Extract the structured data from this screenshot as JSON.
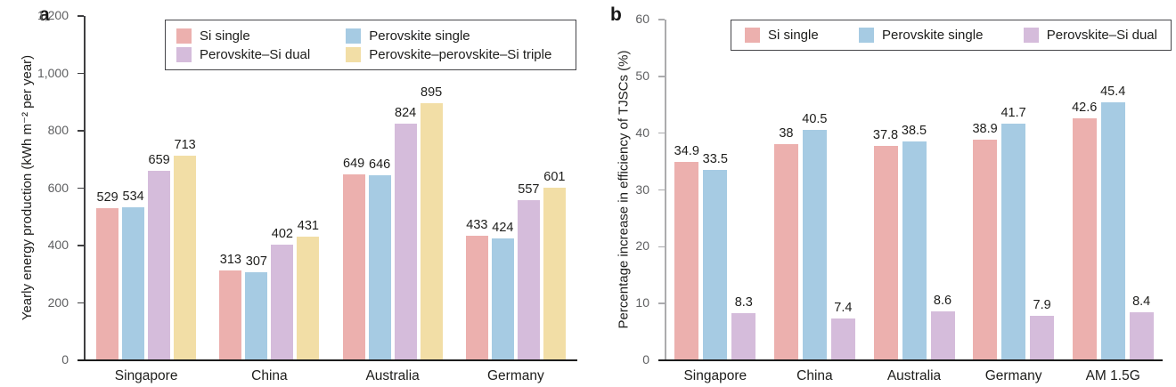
{
  "figure_title": "",
  "colors": {
    "si_single": "#ECB0AE",
    "perovskite_single": "#A6CBE3",
    "perovskite_si_dual": "#D5BCDB",
    "perovskite_perovskite_si_triple": "#F2DEA6",
    "baseline": "#1c1c1c",
    "panel_a_axis": "#3f3f41",
    "panel_b_axis": "#ababad",
    "tick_label_text": "#5e5f61",
    "background": "#ffffff"
  },
  "chart_data": [
    {
      "type": "bar",
      "panel_label": "a",
      "categories": [
        "Singapore",
        "China",
        "Australia",
        "Germany"
      ],
      "series": [
        {
          "name": "Si single",
          "color": "#ECB0AE",
          "values": [
            529,
            313,
            649,
            433
          ]
        },
        {
          "name": "Perovskite single",
          "color": "#A6CBE3",
          "values": [
            534,
            307,
            646,
            424
          ]
        },
        {
          "name": "Perovskite–Si dual",
          "color": "#D5BCDB",
          "values": [
            659,
            402,
            824,
            557
          ]
        },
        {
          "name": "Perovskite–perovskite–Si triple",
          "color": "#F2DEA6",
          "values": [
            713,
            431,
            895,
            601
          ]
        }
      ],
      "xlabel": "",
      "ylabel": "Yearly energy production (kWh m⁻² per year)",
      "ylim": [
        0,
        1200
      ],
      "ytick_values": [
        0,
        200,
        400,
        600,
        800,
        1000,
        1200
      ],
      "ytick_labels": [
        "0",
        "200",
        "400",
        "600",
        "800",
        "1,000",
        "1,200"
      ],
      "grid": false,
      "bar_labels": true,
      "legend_position": "top",
      "legend_columns": 2,
      "axis_color": "#3f3f41"
    },
    {
      "type": "bar",
      "panel_label": "b",
      "categories": [
        "Singapore",
        "China",
        "Australia",
        "Germany",
        "AM 1.5G"
      ],
      "series": [
        {
          "name": "Si single",
          "color": "#ECB0AE",
          "values": [
            34.9,
            38,
            37.8,
            38.9,
            42.6
          ]
        },
        {
          "name": "Perovskite single",
          "color": "#A6CBE3",
          "values": [
            33.5,
            40.5,
            38.5,
            41.7,
            45.4
          ]
        },
        {
          "name": "Perovskite–Si dual",
          "color": "#D5BCDB",
          "values": [
            8.3,
            7.4,
            8.6,
            7.9,
            8.4
          ]
        }
      ],
      "xlabel": "",
      "ylabel": "Percentage increase in efficiency of TJSCs (%)",
      "ylim": [
        0,
        60
      ],
      "ytick_values": [
        0,
        10,
        20,
        30,
        40,
        50,
        60
      ],
      "ytick_labels": [
        "0",
        "10",
        "20",
        "30",
        "40",
        "50",
        "60"
      ],
      "grid": false,
      "bar_labels": true,
      "legend_position": "top",
      "legend_columns": 3,
      "axis_color": "#ababad"
    }
  ]
}
